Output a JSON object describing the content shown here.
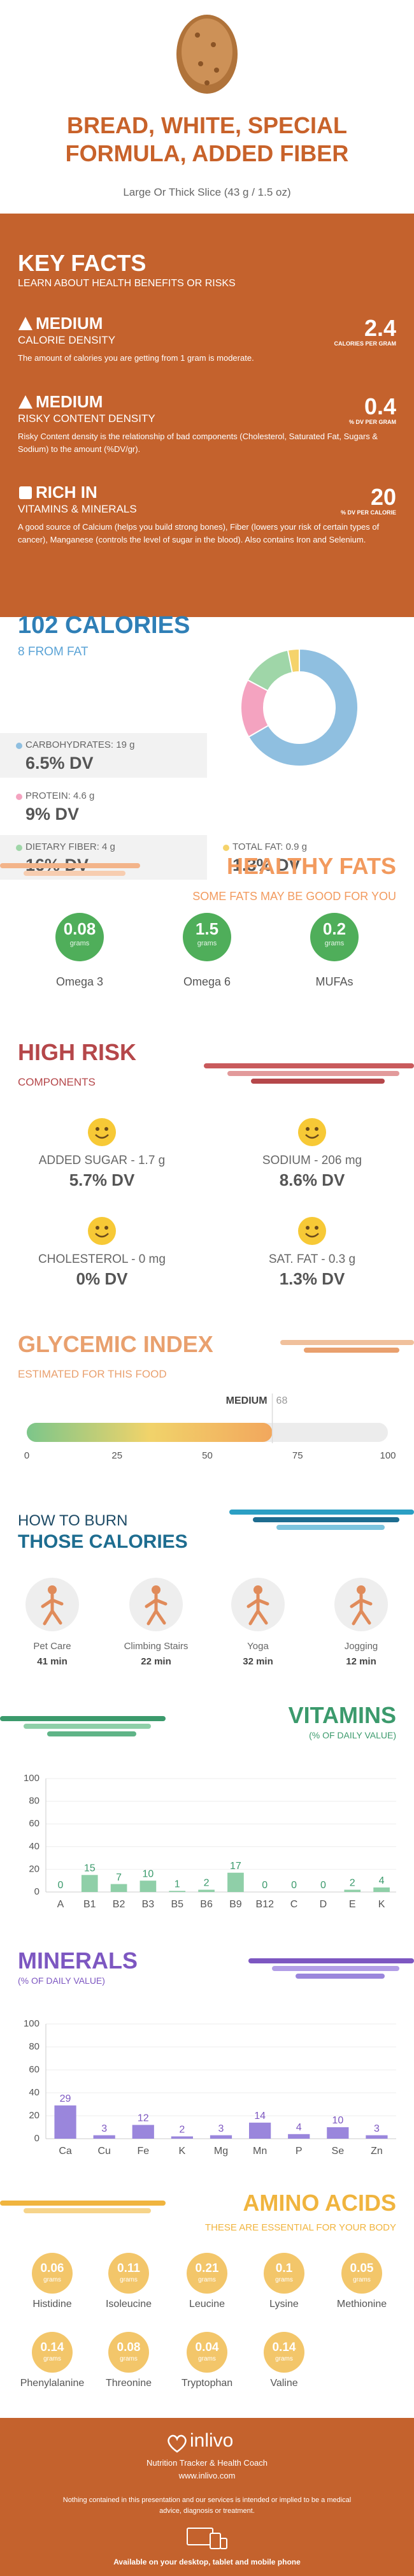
{
  "header": {
    "title": "BREAD, WHITE, SPECIAL FORMULA, ADDED FIBER",
    "subtitle": "Large Or Thick Slice (43 g / 1.5 oz)"
  },
  "key_facts": {
    "title": "KEY FACTS",
    "subtitle": "LEARN ABOUT HEALTH BENEFITS OR RISKS",
    "facts": [
      {
        "level": "MEDIUM",
        "name": "CALORIE DENSITY",
        "value": "2.4",
        "unit": "CALORIES PER GRAM",
        "description": "The amount of calories you are getting from 1 gram is moderate."
      },
      {
        "level": "MEDIUM",
        "name": "RISKY CONTENT DENSITY",
        "value": "0.4",
        "unit": "% DV PER GRAM",
        "description": "Risky Content density is the relationship of bad components (Cholesterol, Saturated Fat, Sugars & Sodium) to the amount (%DV/gr)."
      },
      {
        "level": "RICH IN",
        "name": "VITAMINS & MINERALS",
        "value": "20",
        "unit": "% DV PER CALORIE",
        "description": "A good source of Calcium (helps you build strong bones), Fiber (lowers your risk of certain types of cancer), Manganese (controls the level of sugar in the blood). Also contains Iron and Selenium."
      }
    ]
  },
  "healthy_fats": {
    "title": "HEALTHY FATS",
    "subtitle": "SOME FATS MAY BE GOOD FOR YOU",
    "items": [
      {
        "value": "0.08",
        "unit": "grams",
        "name": "Omega 3"
      },
      {
        "value": "1.5",
        "unit": "grams",
        "name": "Omega 6"
      },
      {
        "value": "0.2",
        "unit": "grams",
        "name": "MUFAs"
      }
    ]
  },
  "high_risk": {
    "title": "HIGH RISK",
    "subtitle": "COMPONENTS",
    "items": [
      {
        "label": "ADDED SUGAR - 1.7 g",
        "dv": "5.7% DV"
      },
      {
        "label": "SODIUM - 206 mg",
        "dv": "8.6% DV"
      },
      {
        "label": "CHOLESTEROL - 0 mg",
        "dv": "0% DV"
      },
      {
        "label": "SAT. FAT - 0.3 g",
        "dv": "1.3% DV"
      }
    ]
  },
  "burn": {
    "title_line1": "HOW TO BURN",
    "title_line2": "THOSE CALORIES",
    "activities": [
      {
        "name": "Pet Care",
        "time": "41 min"
      },
      {
        "name": "Climbing Stairs",
        "time": "22 min"
      },
      {
        "name": "Yoga",
        "time": "32 min"
      },
      {
        "name": "Jogging",
        "time": "12 min"
      }
    ]
  },
  "amino_acids": {
    "title": "AMINO ACIDS",
    "subtitle": "THESE ARE ESSENTIAL FOR YOUR BODY",
    "items": [
      {
        "value": "0.06",
        "unit": "grams",
        "name": "Histidine"
      },
      {
        "value": "0.11",
        "unit": "grams",
        "name": "Isoleucine"
      },
      {
        "value": "0.21",
        "unit": "grams",
        "name": "Leucine"
      },
      {
        "value": "0.1",
        "unit": "grams",
        "name": "Lysine"
      },
      {
        "value": "0.05",
        "unit": "grams",
        "name": "Methionine"
      },
      {
        "value": "0.14",
        "unit": "grams",
        "name": "Phenylalanine"
      },
      {
        "value": "0.08",
        "unit": "grams",
        "name": "Threonine"
      },
      {
        "value": "0.04",
        "unit": "grams",
        "name": "Tryptophan"
      },
      {
        "value": "0.14",
        "unit": "grams",
        "name": "Valine"
      }
    ]
  },
  "footer": {
    "brand": "inlivo",
    "tagline": "Nutrition Tracker & Health Coach",
    "url": "www.inlivo.com",
    "disclaimer": "Nothing contained in this presentation and our services is intended or implied to be a medical advice, diagnosis or treatment.",
    "availability": "Available on your desktop, tablet and mobile phone"
  },
  "chart_data": [
    {
      "type": "pie",
      "title": "102 CALORIES",
      "subtitle": "8 FROM FAT",
      "categories": [
        "CARBOHYDRATES: 19 g",
        "PROTEIN: 4.6 g",
        "DIETARY FIBER: 4 g",
        "TOTAL FAT: 0.9 g"
      ],
      "values": [
        19,
        4.6,
        4,
        0.9
      ],
      "dv_labels": [
        "6.5% DV",
        "9% DV",
        "16% DV",
        "1.3% DV"
      ],
      "colors": [
        "#8fbfe0",
        "#f4a3c0",
        "#9fd6a8",
        "#f5d36b"
      ]
    },
    {
      "type": "gauge",
      "title": "GLYCEMIC INDEX",
      "subtitle": "ESTIMATED FOR THIS FOOD",
      "label": "MEDIUM",
      "value": 68,
      "xlim": [
        0,
        100
      ],
      "xticks": [
        0,
        25,
        50,
        75,
        100
      ],
      "colors": [
        "#7cc68a",
        "#f1d36a",
        "#f2a75d"
      ]
    },
    {
      "type": "bar",
      "title": "VITAMINS",
      "subtitle": "(% OF DAILY VALUE)",
      "categories": [
        "A",
        "B1",
        "B2",
        "B3",
        "B5",
        "B6",
        "B9",
        "B12",
        "C",
        "D",
        "E",
        "K"
      ],
      "values": [
        0,
        15,
        7,
        10,
        1,
        2,
        17,
        0,
        0,
        0,
        2,
        4
      ],
      "color": "#8fcfa8",
      "label_color": "#3b9a6c",
      "ylim": [
        0,
        100
      ],
      "yticks": [
        0,
        20,
        40,
        60,
        80,
        100
      ],
      "grid": true
    },
    {
      "type": "bar",
      "title": "MINERALS",
      "subtitle": "(% OF DAILY VALUE)",
      "categories": [
        "Ca",
        "Cu",
        "Fe",
        "K",
        "Mg",
        "Mn",
        "P",
        "Se",
        "Zn"
      ],
      "values": [
        29,
        3,
        12,
        2,
        3,
        14,
        4,
        10,
        3
      ],
      "color": "#9a86dc",
      "label_color": "#7d57c1",
      "ylim": [
        0,
        100
      ],
      "yticks": [
        0,
        20,
        40,
        60,
        80,
        100
      ],
      "grid": true
    }
  ]
}
